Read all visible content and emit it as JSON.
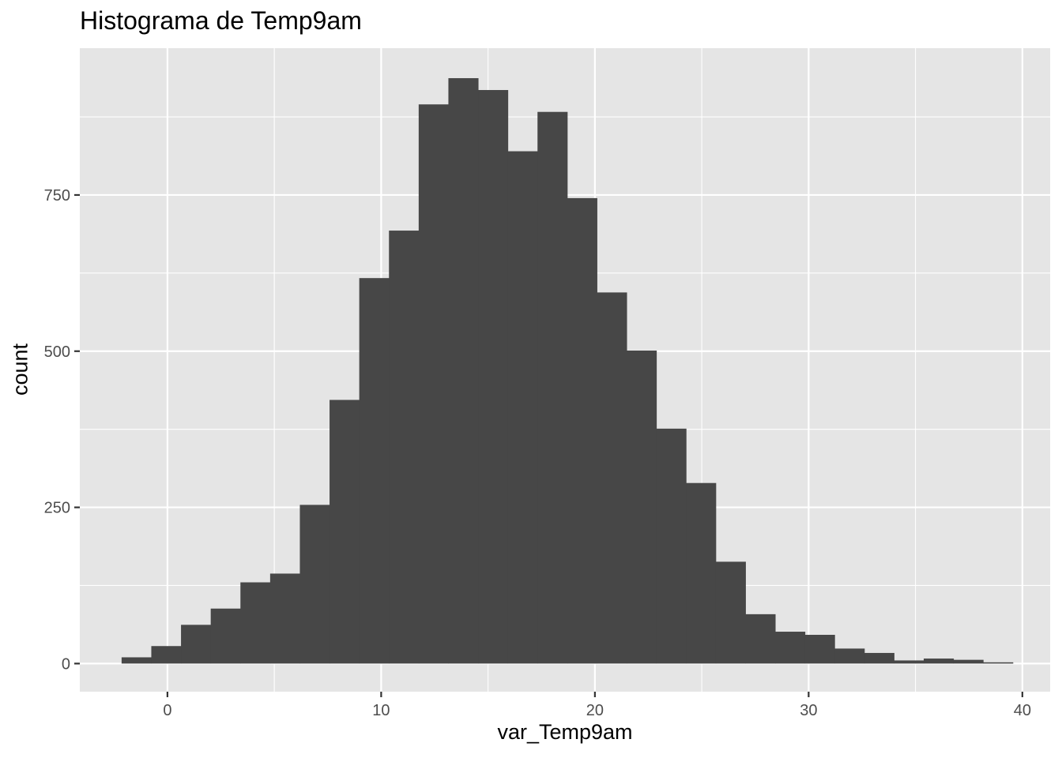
{
  "chart_data": {
    "type": "bar",
    "title": "Histograma de Temp9am",
    "xlabel": "var_Temp9am",
    "ylabel": "count",
    "xlim": [
      -4.1,
      41.3
    ],
    "ylim": [
      -45,
      985
    ],
    "x_major_ticks": [
      0,
      10,
      20,
      30,
      40
    ],
    "x_minor_ticks": [
      5,
      15,
      25,
      35
    ],
    "y_major_ticks": [
      0,
      250,
      500,
      750
    ],
    "y_minor_ticks": [
      125,
      375,
      625,
      875
    ],
    "x_tick_labels": [
      "0",
      "10",
      "20",
      "30",
      "40"
    ],
    "y_tick_labels": [
      "0",
      "250",
      "500",
      "750"
    ],
    "bin_width": 1.39,
    "grid": true,
    "colors": {
      "bar": "#474747",
      "panel": "#e5e5e5",
      "grid": "#ffffff",
      "ticks": "#4d4d4d"
    },
    "bins": [
      {
        "x": -1.45,
        "count": 10
      },
      {
        "x": -0.06,
        "count": 28
      },
      {
        "x": 1.33,
        "count": 62
      },
      {
        "x": 2.72,
        "count": 88
      },
      {
        "x": 4.11,
        "count": 130
      },
      {
        "x": 5.5,
        "count": 144
      },
      {
        "x": 6.89,
        "count": 254
      },
      {
        "x": 8.28,
        "count": 422
      },
      {
        "x": 9.67,
        "count": 617
      },
      {
        "x": 11.06,
        "count": 693
      },
      {
        "x": 12.45,
        "count": 895
      },
      {
        "x": 13.84,
        "count": 937
      },
      {
        "x": 15.23,
        "count": 918
      },
      {
        "x": 16.62,
        "count": 820
      },
      {
        "x": 18.01,
        "count": 883
      },
      {
        "x": 19.4,
        "count": 745
      },
      {
        "x": 20.79,
        "count": 594
      },
      {
        "x": 22.18,
        "count": 501
      },
      {
        "x": 23.57,
        "count": 376
      },
      {
        "x": 24.96,
        "count": 289
      },
      {
        "x": 26.35,
        "count": 163
      },
      {
        "x": 27.74,
        "count": 79
      },
      {
        "x": 29.13,
        "count": 51
      },
      {
        "x": 30.52,
        "count": 46
      },
      {
        "x": 31.91,
        "count": 24
      },
      {
        "x": 33.3,
        "count": 17
      },
      {
        "x": 34.69,
        "count": 5
      },
      {
        "x": 36.08,
        "count": 8
      },
      {
        "x": 37.47,
        "count": 6
      },
      {
        "x": 38.86,
        "count": 2
      }
    ]
  }
}
